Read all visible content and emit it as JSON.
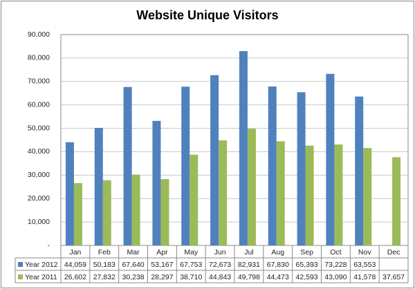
{
  "chart_data": {
    "type": "bar",
    "title": "Website Unique Visitors",
    "categories": [
      "Jan",
      "Feb",
      "Mar",
      "Apr",
      "May",
      "Jun",
      "Jul",
      "Aug",
      "Sep",
      "Oct",
      "Nov",
      "Dec"
    ],
    "series": [
      {
        "name": "Year 2012",
        "color": "#4f81bd",
        "values": [
          44059,
          50183,
          67640,
          53167,
          67753,
          72673,
          82931,
          67830,
          65393,
          73228,
          63553,
          null
        ],
        "value_labels": [
          "44,059",
          "50,183",
          "67,640",
          "53,167",
          "67,753",
          "72,673",
          "82,931",
          "67,830",
          "65,393",
          "73,228",
          "63,553",
          null
        ]
      },
      {
        "name": "Year 2011",
        "color": "#9bbb59",
        "values": [
          26602,
          27832,
          30238,
          28297,
          38710,
          44843,
          49798,
          44473,
          42593,
          43090,
          41578,
          37657
        ],
        "value_labels": [
          "26,602",
          "27,832",
          "30,238",
          "28,297",
          "38,710",
          "44,843",
          "49,798",
          "44,473",
          "42,593",
          "43,090",
          "41,578",
          "37,657"
        ]
      }
    ],
    "ylim": [
      0,
      90000
    ],
    "yticks": [
      {
        "value": 0,
        "label": "-"
      },
      {
        "value": 10000,
        "label": "10,000"
      },
      {
        "value": 20000,
        "label": "20,000"
      },
      {
        "value": 30000,
        "label": "30,000"
      },
      {
        "value": 40000,
        "label": "40,000"
      },
      {
        "value": 50000,
        "label": "50,000"
      },
      {
        "value": 60000,
        "label": "60,000"
      },
      {
        "value": 70000,
        "label": "70,000"
      },
      {
        "value": 80000,
        "label": "80,000"
      },
      {
        "value": 90000,
        "label": "90,000"
      }
    ],
    "grid": true
  }
}
